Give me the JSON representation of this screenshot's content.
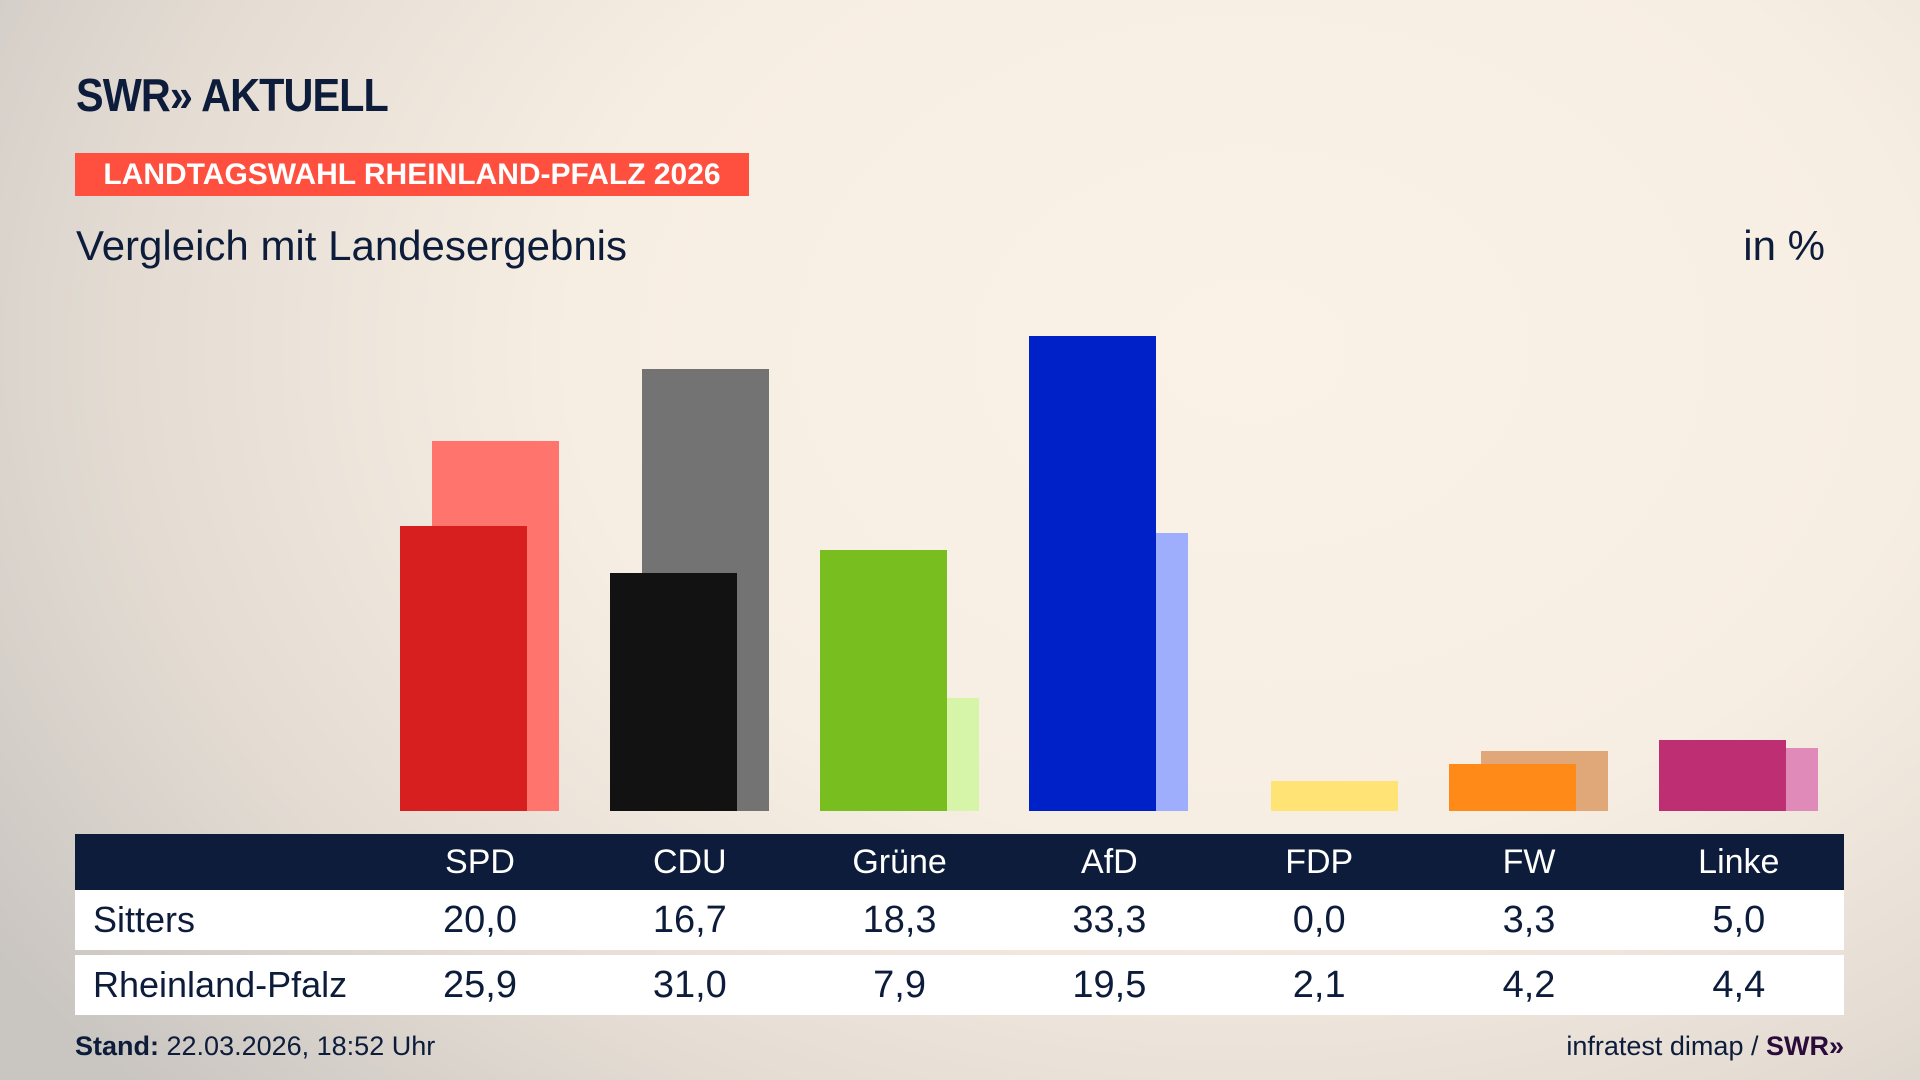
{
  "header": {
    "logo": "SWR» AKTUELL",
    "banner": "LANDTAGSWAHL RHEINLAND-PFALZ 2026",
    "subtitle": "Vergleich mit Landesergebnis",
    "unit": "in %"
  },
  "chart_data": {
    "type": "bar",
    "title": "Vergleich mit Landesergebnis",
    "ylabel": "in %",
    "ylim": [
      0,
      35
    ],
    "categories": [
      "SPD",
      "CDU",
      "Grüne",
      "AfD",
      "FDP",
      "FW",
      "Linke"
    ],
    "series": [
      {
        "name": "Sitters",
        "values": [
          20.0,
          16.7,
          18.3,
          33.3,
          0.0,
          3.3,
          5.0
        ],
        "display": [
          "20,0",
          "16,7",
          "18,3",
          "33,3",
          "0,0",
          "3,3",
          "5,0"
        ]
      },
      {
        "name": "Rheinland-Pfalz",
        "values": [
          25.9,
          31.0,
          7.9,
          19.5,
          2.1,
          4.2,
          4.4
        ],
        "display": [
          "25,9",
          "31,0",
          "7,9",
          "19,5",
          "2,1",
          "4,2",
          "4,4"
        ]
      }
    ],
    "colors_front": [
      "#d71f1f",
      "#121212",
      "#78be1e",
      "#0021c8",
      "#ffe375",
      "#ff8a17",
      "#be2e72"
    ],
    "colors_back": [
      "#ff756e",
      "#737373",
      "#d6f5a8",
      "#9eaefc",
      "#ffe375",
      "#e0a878",
      "#df8ab8"
    ],
    "grid": false
  },
  "footer": {
    "stand_label": "Stand:",
    "stand_value": "22.03.2026, 18:52 Uhr",
    "source": "infratest dimap /",
    "source_logo": "SWR»"
  }
}
